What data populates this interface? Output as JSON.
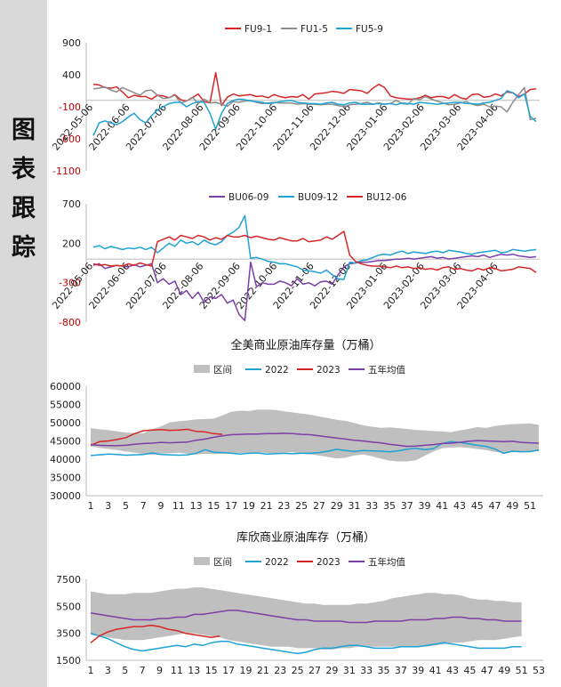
{
  "sidebar": {
    "title_chars": [
      "图",
      "表",
      "跟",
      "踪"
    ]
  },
  "chart_data": [
    {
      "id": "fu",
      "type": "line",
      "title": "",
      "legend_position": "top",
      "ylim": [
        -1100,
        900
      ],
      "yticks": [
        900,
        400,
        -100,
        -600,
        -1100
      ],
      "x_tick_labels": [
        "2022-05-06",
        "2022-06-06",
        "2022-07-06",
        "2022-08-06",
        "2022-09-06",
        "2022-10-06",
        "2022-11-06",
        "2022-12-06",
        "2023-01-06",
        "2023-02-06",
        "2023-03-06",
        "2023-04-06"
      ],
      "series": [
        {
          "name": "FU9-1",
          "color": "#d62728",
          "values": [
            250,
            240,
            200,
            190,
            210,
            130,
            40,
            80,
            60,
            60,
            20,
            80,
            70,
            40,
            90,
            10,
            -10,
            40,
            100,
            -20,
            -40,
            430,
            -80,
            50,
            100,
            70,
            80,
            90,
            60,
            70,
            40,
            90,
            60,
            40,
            60,
            50,
            90,
            20,
            100,
            110,
            120,
            140,
            130,
            110,
            170,
            160,
            150,
            110,
            190,
            250,
            200,
            70,
            40,
            30,
            20,
            20,
            40,
            80,
            40,
            60,
            60,
            30,
            90,
            40,
            20,
            90,
            100,
            50,
            60,
            100,
            70,
            130,
            120,
            60,
            100,
            170,
            180
          ]
        },
        {
          "name": "FU1-5",
          "color": "#8c8c8c",
          "values": [
            180,
            190,
            210,
            160,
            130,
            200,
            160,
            120,
            80,
            150,
            160,
            80,
            30,
            40,
            80,
            -40,
            -10,
            50,
            -50,
            20,
            -40,
            -30,
            -60,
            -90,
            -20,
            -30,
            -10,
            0,
            -30,
            -50,
            -40,
            -30,
            -40,
            -40,
            -40,
            -60,
            -50,
            -60,
            -60,
            -70,
            -60,
            -60,
            -80,
            -100,
            -70,
            -60,
            -50,
            -30,
            -60,
            -40,
            -60,
            -50,
            0,
            -50,
            -60,
            30,
            10,
            60,
            20,
            -10,
            -40,
            -70,
            -60,
            -40,
            -20,
            -60,
            -80,
            -60,
            -100,
            -90,
            -100,
            -180,
            -30,
            90,
            200,
            -300,
            -280
          ]
        },
        {
          "name": "FU5-9",
          "color": "#1fa2d6",
          "values": [
            -550,
            -350,
            -320,
            -350,
            -380,
            -330,
            -260,
            -200,
            -300,
            -350,
            -240,
            -150,
            -100,
            -50,
            -30,
            -30,
            -100,
            -50,
            -20,
            -30,
            -200,
            -450,
            -200,
            -50,
            0,
            20,
            10,
            -10,
            -20,
            -30,
            -50,
            -40,
            -20,
            -10,
            0,
            -30,
            -40,
            -50,
            -50,
            -60,
            -40,
            -30,
            -60,
            -70,
            -40,
            -30,
            -60,
            -60,
            -60,
            -50,
            -60,
            -50,
            -70,
            -40,
            -50,
            -60,
            -30,
            -40,
            -50,
            -60,
            -50,
            -40,
            -30,
            -30,
            -50,
            -50,
            -60,
            -40,
            -30,
            0,
            30,
            150,
            120,
            40,
            100,
            -250,
            -330
          ]
        }
      ]
    },
    {
      "id": "bu",
      "type": "line",
      "title": "",
      "legend_position": "top",
      "ylim": [
        -800,
        700
      ],
      "yticks": [
        700,
        200,
        -300,
        -800
      ],
      "x_tick_labels": [
        "2022-05-06",
        "2022-06-06",
        "2022-07-06",
        "2022-08-06",
        "2022-09-06",
        "2022-10-06",
        "2022-11-06",
        "2022-12-06",
        "2023-01-06",
        "2023-02-06",
        "2023-03-06",
        "2023-04-06"
      ],
      "series": [
        {
          "name": "BU06-09",
          "color": "#7b3fa8",
          "values": [
            -80,
            -60,
            -120,
            -100,
            -80,
            -90,
            -100,
            -70,
            -100,
            -80,
            -60,
            -300,
            -250,
            -320,
            -280,
            -450,
            -400,
            -500,
            -420,
            -550,
            -480,
            -500,
            -450,
            -560,
            -520,
            -700,
            -780,
            -40,
            -350,
            -300,
            -320,
            -320,
            -280,
            -300,
            -340,
            -250,
            -320,
            -300,
            -340,
            -290,
            -280,
            -320,
            -200,
            -100,
            -60,
            -50,
            -40,
            -40,
            -30,
            -20,
            -20,
            -10,
            0,
            0,
            10,
            0,
            10,
            20,
            30,
            10,
            20,
            0,
            10,
            20,
            30,
            40,
            30,
            50,
            20,
            40,
            60,
            50,
            60,
            40,
            30,
            20,
            30
          ]
        },
        {
          "name": "BU09-12",
          "color": "#1fa2d6",
          "values": [
            150,
            170,
            130,
            160,
            140,
            120,
            140,
            130,
            150,
            120,
            150,
            80,
            140,
            200,
            160,
            240,
            200,
            220,
            180,
            240,
            200,
            180,
            220,
            300,
            340,
            400,
            550,
            10,
            20,
            0,
            -30,
            -40,
            -60,
            -60,
            -80,
            -100,
            -140,
            -150,
            -160,
            -180,
            -140,
            -200,
            -250,
            -260,
            -40,
            -50,
            -20,
            -10,
            20,
            50,
            60,
            50,
            80,
            100,
            70,
            90,
            80,
            70,
            90,
            100,
            80,
            110,
            100,
            90,
            70,
            60,
            80,
            90,
            100,
            110,
            80,
            90,
            120,
            110,
            100,
            110,
            120
          ]
        },
        {
          "name": "BU12-06",
          "color": "#d62728",
          "values": [
            -60,
            -80,
            -70,
            -90,
            -80,
            -90,
            -60,
            -80,
            -50,
            -70,
            -90,
            220,
            250,
            280,
            240,
            300,
            280,
            260,
            300,
            280,
            240,
            270,
            250,
            300,
            280,
            280,
            300,
            270,
            290,
            270,
            250,
            240,
            270,
            250,
            230,
            230,
            260,
            220,
            230,
            240,
            280,
            250,
            300,
            350,
            50,
            -30,
            -60,
            -80,
            -90,
            -90,
            -100,
            -110,
            -90,
            -110,
            -100,
            -120,
            -110,
            -130,
            -120,
            -140,
            -110,
            -100,
            -130,
            -120,
            -140,
            -150,
            -120,
            -140,
            -110,
            -120,
            -150,
            -140,
            -130,
            -100,
            -110,
            -120,
            -170
          ]
        }
      ]
    },
    {
      "id": "us",
      "type": "line",
      "title": "全美商业原油库存量（万桶）",
      "legend_position": "top",
      "ylim": [
        30000,
        60000
      ],
      "yticks": [
        60000,
        55000,
        50000,
        45000,
        40000,
        35000,
        30000
      ],
      "xlim": [
        1,
        52
      ],
      "x_tick_labels": [
        "1",
        "3",
        "5",
        "7",
        "9",
        "11",
        "13",
        "15",
        "17",
        "19",
        "21",
        "23",
        "25",
        "27",
        "29",
        "31",
        "33",
        "35",
        "37",
        "39",
        "41",
        "43",
        "45",
        "47",
        "49",
        "51"
      ],
      "band": {
        "name": "区间",
        "color": "#bfbfbf",
        "upper": [
          48500,
          48200,
          48000,
          47600,
          47300,
          47200,
          47100,
          48200,
          49000,
          50100,
          50400,
          50600,
          50900,
          51000,
          51100,
          52000,
          53000,
          53300,
          53200,
          53600,
          53600,
          53500,
          53100,
          52800,
          52500,
          52200,
          51700,
          51300,
          50800,
          50500,
          49900,
          49300,
          48900,
          48600,
          48700,
          48500,
          48300,
          48000,
          47900,
          47700,
          47600,
          47400,
          47900,
          48300,
          48800,
          48600,
          49100,
          49400,
          49600,
          49700,
          49800,
          49400
        ],
        "lower": [
          43500,
          43100,
          42800,
          42500,
          42100,
          41800,
          41400,
          41200,
          41500,
          41600,
          41800,
          41500,
          41300,
          41500,
          41400,
          41500,
          41600,
          41700,
          41700,
          41900,
          41700,
          41600,
          41800,
          41900,
          41500,
          41300,
          41000,
          40600,
          40200,
          40400,
          41000,
          41300,
          40800,
          40200,
          39600,
          39400,
          39400,
          39700,
          40900,
          42100,
          43000,
          43200,
          43300,
          43100,
          42800,
          42500,
          42000,
          41700,
          41900,
          42000,
          42100,
          42200
        ]
      },
      "series": [
        {
          "name": "2022",
          "color": "#1fa2d6",
          "values": [
            41000,
            41200,
            41400,
            41300,
            41100,
            41200,
            41300,
            41700,
            41300,
            41200,
            41100,
            41200,
            41600,
            42600,
            41900,
            41800,
            41600,
            41400,
            41600,
            41700,
            41400,
            41500,
            41600,
            41500,
            41600,
            41600,
            41800,
            42200,
            42700,
            42400,
            42100,
            42400,
            42300,
            42200,
            42000,
            42300,
            42700,
            43000,
            42600,
            42900,
            44300,
            44800,
            44600,
            44200,
            43800,
            43500,
            42800,
            41600,
            42200,
            42000,
            42100,
            42500
          ]
        },
        {
          "name": "2023",
          "color": "#d62728",
          "values": [
            43800,
            44800,
            45000,
            45400,
            45900,
            47000,
            47800,
            48000,
            48100,
            47900,
            48000,
            48200,
            47600,
            47500,
            47000,
            46800
          ]
        },
        {
          "name": "五年均值",
          "color": "#7b3fa8",
          "values": [
            44000,
            43800,
            43700,
            43700,
            43800,
            44100,
            44300,
            44400,
            44600,
            44500,
            44600,
            44700,
            45200,
            45500,
            46000,
            46400,
            46700,
            46800,
            46900,
            46900,
            47000,
            47000,
            47100,
            47000,
            46800,
            46700,
            46400,
            46100,
            45800,
            45500,
            45200,
            45000,
            44700,
            44500,
            44100,
            43800,
            43500,
            43600,
            43800,
            44000,
            44300,
            44400,
            44600,
            44900,
            45100,
            45000,
            44900,
            44800,
            44900,
            44600,
            44500,
            44400
          ]
        }
      ]
    },
    {
      "id": "cushing",
      "type": "line",
      "title": "库欣商业原油库存（万桶）",
      "legend_position": "top",
      "ylim": [
        1500,
        7500
      ],
      "yticks": [
        7500,
        5500,
        3500,
        1500
      ],
      "xlim": [
        1,
        53
      ],
      "x_tick_labels": [
        "1",
        "3",
        "5",
        "7",
        "9",
        "11",
        "13",
        "15",
        "17",
        "19",
        "21",
        "23",
        "25",
        "27",
        "29",
        "31",
        "33",
        "35",
        "37",
        "39",
        "41",
        "43",
        "45",
        "47",
        "49",
        "51",
        "53"
      ],
      "band": {
        "name": "区间",
        "color": "#bfbfbf",
        "upper": [
          6600,
          6500,
          6400,
          6400,
          6400,
          6500,
          6500,
          6500,
          6600,
          6700,
          6800,
          6800,
          6900,
          6900,
          6800,
          6700,
          6600,
          6500,
          6400,
          6300,
          6200,
          6100,
          6000,
          5900,
          5800,
          5700,
          5700,
          5600,
          5600,
          5600,
          5600,
          5700,
          5700,
          5800,
          5900,
          6100,
          6200,
          6300,
          6400,
          6500,
          6500,
          6400,
          6400,
          6300,
          6100,
          6000,
          6000,
          5900,
          5900,
          5800,
          5800
        ],
        "lower": [
          3400,
          3300,
          3200,
          3100,
          3000,
          3000,
          3000,
          3100,
          3200,
          3300,
          3400,
          3500,
          3500,
          3400,
          3300,
          3200,
          3000,
          2900,
          2800,
          2700,
          2600,
          2500,
          2500,
          2500,
          2400,
          2400,
          2400,
          2300,
          2300,
          2400,
          2400,
          2500,
          2500,
          2500,
          2500,
          2500,
          2500,
          2500,
          2500,
          2500,
          2600,
          2700,
          2800,
          2800,
          2900,
          3000,
          3000,
          3000,
          3100,
          3200,
          3300
        ]
      },
      "series": [
        {
          "name": "2022",
          "color": "#1fa2d6",
          "values": [
            3500,
            3300,
            3100,
            2800,
            2500,
            2300,
            2200,
            2300,
            2400,
            2500,
            2600,
            2500,
            2700,
            2600,
            2800,
            2900,
            2900,
            2700,
            2600,
            2500,
            2400,
            2300,
            2200,
            2100,
            2000,
            2100,
            2300,
            2400,
            2400,
            2500,
            2600,
            2600,
            2500,
            2400,
            2400,
            2400,
            2500,
            2500,
            2500,
            2600,
            2700,
            2800,
            2700,
            2600,
            2500,
            2400,
            2400,
            2400,
            2400,
            2500,
            2500
          ]
        },
        {
          "name": "2023",
          "color": "#d62728",
          "values": [
            2800,
            3300,
            3600,
            3800,
            3900,
            4000,
            4000,
            4100,
            4000,
            3800,
            3700,
            3500,
            3400,
            3300,
            3200,
            3300
          ]
        },
        {
          "name": "五年均值",
          "color": "#7b3fa8",
          "values": [
            5000,
            4900,
            4800,
            4700,
            4600,
            4500,
            4500,
            4500,
            4600,
            4600,
            4700,
            4700,
            4900,
            4900,
            5000,
            5100,
            5200,
            5200,
            5100,
            5000,
            4900,
            4800,
            4700,
            4600,
            4500,
            4500,
            4400,
            4400,
            4400,
            4400,
            4300,
            4300,
            4300,
            4400,
            4400,
            4400,
            4400,
            4500,
            4500,
            4500,
            4600,
            4600,
            4700,
            4700,
            4600,
            4600,
            4500,
            4500,
            4400,
            4400,
            4400
          ]
        }
      ]
    }
  ]
}
